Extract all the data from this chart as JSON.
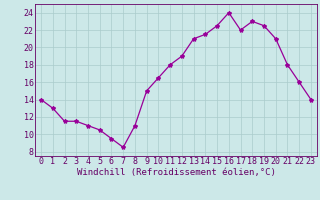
{
  "x": [
    0,
    1,
    2,
    3,
    4,
    5,
    6,
    7,
    8,
    9,
    10,
    11,
    12,
    13,
    14,
    15,
    16,
    17,
    18,
    19,
    20,
    21,
    22,
    23
  ],
  "y": [
    14,
    13,
    11.5,
    11.5,
    11,
    10.5,
    9.5,
    8.5,
    11,
    15,
    16.5,
    18,
    19,
    21,
    21.5,
    22.5,
    24,
    22,
    23,
    22.5,
    21,
    18,
    16,
    14
  ],
  "line_color": "#990099",
  "marker": "*",
  "marker_size": 3,
  "bg_color": "#cce8e8",
  "grid_color": "#aacccc",
  "xlabel": "Windchill (Refroidissement éolien,°C)",
  "xlim": [
    -0.5,
    23.5
  ],
  "ylim": [
    7.5,
    25
  ],
  "yticks": [
    8,
    10,
    12,
    14,
    16,
    18,
    20,
    22,
    24
  ],
  "xticks": [
    0,
    1,
    2,
    3,
    4,
    5,
    6,
    7,
    8,
    9,
    10,
    11,
    12,
    13,
    14,
    15,
    16,
    17,
    18,
    19,
    20,
    21,
    22,
    23
  ],
  "tick_color": "#660066",
  "label_fontsize": 6.5,
  "tick_fontsize": 6
}
